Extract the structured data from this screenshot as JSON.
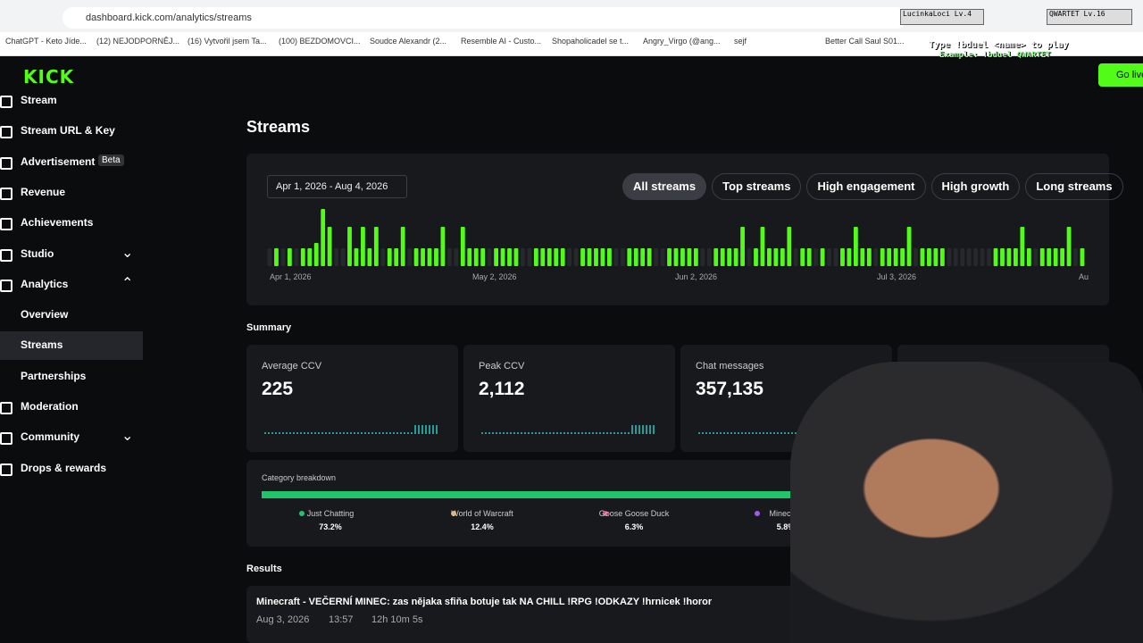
{
  "browser": {
    "url": "dashboard.kick.com/analytics/streams",
    "bookmarks": [
      "ChatGPT - Keto Jíde...",
      "(12) NEJODPORNĚJ...",
      "(16) Vytvořil jsem Ta...",
      "(100) BEZDOMOVCI...",
      "Soudce Alexandr (2...",
      "Resemble AI - Custo...",
      "Shopaholicadel se t...",
      "Angry_Virgo (@ang...",
      "sejf",
      "Better Call Saul S01..."
    ]
  },
  "overlay": {
    "player1": "LucinkaLoci Lv.4",
    "player2": "QWARTET Lv.16",
    "hint": "Type !bduel <name> to play",
    "example": "Example: !bduel QWARTET",
    "go_live": "Go live"
  },
  "sidebar": {
    "items": [
      {
        "label": "Stream"
      },
      {
        "label": "Stream URL & Key"
      },
      {
        "label": "Advertisement",
        "badge": "Beta"
      },
      {
        "label": "Revenue"
      },
      {
        "label": "Achievements"
      },
      {
        "label": "Studio"
      },
      {
        "label": "Analytics"
      },
      {
        "label": "Overview"
      },
      {
        "label": "Streams"
      },
      {
        "label": "Partnerships"
      },
      {
        "label": "Moderation"
      },
      {
        "label": "Community"
      },
      {
        "label": "Drops & rewards"
      }
    ]
  },
  "main": {
    "title": "Streams",
    "date_range": "Apr 1, 2026 - Aug 4, 2026",
    "filters": [
      "All streams",
      "Top streams",
      "High engagement",
      "High growth",
      "Long streams"
    ],
    "timeline": {
      "type": "bar",
      "x_labels": [
        "Apr 1, 2026",
        "May 2, 2026",
        "Jun 2, 2026",
        "Jul 3, 2026",
        "Au"
      ],
      "color": "#53fc18",
      "values": [
        0,
        20,
        0,
        20,
        0,
        20,
        20,
        26,
        64,
        44,
        0,
        0,
        44,
        20,
        44,
        20,
        44,
        0,
        20,
        20,
        44,
        0,
        20,
        20,
        20,
        20,
        44,
        0,
        0,
        44,
        20,
        20,
        20,
        0,
        20,
        20,
        20,
        20,
        0,
        0,
        20,
        20,
        20,
        20,
        20,
        0,
        0,
        20,
        20,
        20,
        20,
        20,
        0,
        0,
        20,
        20,
        20,
        20,
        0,
        0,
        20,
        20,
        20,
        20,
        20,
        0,
        0,
        20,
        20,
        20,
        20,
        44,
        0,
        20,
        44,
        20,
        20,
        20,
        44,
        0,
        20,
        20,
        0,
        20,
        0,
        0,
        20,
        20,
        44,
        20,
        20,
        0,
        20,
        20,
        20,
        20,
        44,
        0,
        20,
        20,
        20,
        20,
        0,
        0,
        0,
        0,
        0,
        0,
        0,
        20,
        20,
        20,
        20,
        44,
        20,
        0,
        20,
        20,
        20,
        20,
        44,
        0,
        20
      ]
    },
    "summary_title": "Summary",
    "cards": [
      {
        "label": "Average CCV",
        "value": "225"
      },
      {
        "label": "Peak CCV",
        "value": "2,112"
      },
      {
        "label": "Chat messages",
        "value": "357,135"
      }
    ],
    "category": {
      "title": "Category breakdown",
      "items": [
        {
          "name": "Just Chatting",
          "color": "#21c46b",
          "value": 73.2,
          "value_label": "73.2%"
        },
        {
          "name": "World of Warcraft",
          "color": "#f5a623",
          "value": 12.4,
          "value_label": "12.4%"
        },
        {
          "name": "Goose Goose Duck",
          "color": "#e8468f",
          "value": 6.3,
          "value_label": "6.3%"
        },
        {
          "name": "Minecraft",
          "color": "#a855f7",
          "value": 5.8,
          "value_label": "5.8%"
        }
      ]
    },
    "results_title": "Results",
    "results": [
      {
        "title": "Minecraft - VEČERNÍ MINEC: zas nějaka sfiňa botuje tak NA CHILL !RPG !ODKAZY !hrnicek !horor",
        "date": "Aug 3, 2026",
        "time": "13:57",
        "duration": "12h 10m 5s"
      }
    ]
  }
}
